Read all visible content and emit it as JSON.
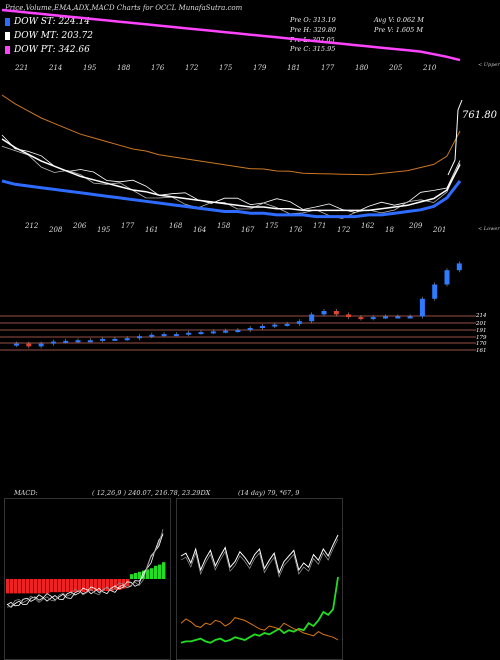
{
  "header": {
    "title": "Price,Volume,EMA,ADX,MACD Charts for OCCL  MunafaSutra.com"
  },
  "legend": [
    {
      "label": "DOW ST: 224.14",
      "color": "#2e6bff"
    },
    {
      "label": "DOW MT: 203.72",
      "color": "#ffffff"
    },
    {
      "label": "DOW PT: 342.66",
      "color": "#ff44ff"
    }
  ],
  "info": {
    "open": "Pre   O: 313.19",
    "high": "Pre   H: 329.80",
    "low": "Pre   L: 307.05",
    "close": "Pre   C: 315.95",
    "avg_vol": "Avg V: 0.062  M",
    "pre_vol": "Pre   V: 1.605  M"
  },
  "tags": {
    "upper": "< Upper",
    "lower": "< Lower"
  },
  "price_label": "761.80",
  "levels": [
    "214",
    "201",
    "191",
    "179",
    "170",
    "161"
  ],
  "macd": {
    "label": "MACD:",
    "values": "( 12,26,9 ) 240.07,  216.78,  23.29DX",
    "adx": "(14  day) 79,  *67,  9"
  },
  "chart_data": [
    {
      "type": "line",
      "title": "Price,Volume,EMA,ADX,MACD Charts for OCCL",
      "series": [
        {
          "name": "DOW ST: 224.14",
          "color": "#2e6bff",
          "values": [
            178,
            176,
            175,
            174,
            173,
            172,
            171,
            170,
            169,
            168,
            167,
            166,
            165,
            164,
            163,
            162,
            161,
            160,
            160,
            159,
            159,
            158,
            158,
            158,
            157,
            157,
            157,
            157,
            158,
            158,
            159,
            160,
            161,
            163,
            168,
            178
          ]
        },
        {
          "name": "DOW MT: 203.72",
          "color": "#ffffff",
          "values": [
            205,
            200,
            196,
            192,
            189,
            186,
            183,
            181,
            179,
            177,
            175,
            174,
            172,
            171,
            170,
            169,
            168,
            167,
            166,
            165,
            165,
            164,
            164,
            163,
            163,
            163,
            163,
            163,
            163,
            164,
            165,
            166,
            168,
            170,
            175,
            190
          ]
        },
        {
          "name": "DOW PT: 342.66",
          "color": "#ff44ff",
          "values": [
            420,
            418,
            416,
            414,
            412,
            410,
            408,
            406,
            404,
            402,
            400,
            398,
            396,
            394,
            392,
            390,
            388,
            386,
            384,
            382,
            380,
            378,
            376,
            374,
            372,
            370,
            368,
            366,
            364,
            362,
            360,
            358,
            356,
            352,
            348,
            343
          ]
        }
      ],
      "top_labels": [
        "221",
        "214",
        "195",
        "188",
        "176",
        "172",
        "175",
        "179",
        "181",
        "177",
        "180",
        "205",
        "210"
      ],
      "bottom_labels": [
        "212",
        "208",
        "206",
        "195",
        "177",
        "161",
        "168",
        "164",
        "158",
        "167",
        "175",
        "176",
        "171",
        "172",
        "162",
        "18",
        "209",
        "201"
      ],
      "candles_close": [
        167,
        163,
        167,
        170,
        171,
        172,
        172,
        174,
        174,
        175,
        178,
        180,
        181,
        181,
        183,
        184,
        185,
        186,
        187,
        190,
        193,
        195,
        196,
        200,
        210,
        215,
        210,
        206,
        204,
        206,
        207,
        207,
        207,
        233,
        254,
        275,
        285
      ]
    },
    {
      "type": "bar",
      "title": "MACD",
      "values": [
        -12,
        -12,
        -12,
        -12,
        -12,
        -12,
        -12,
        -12,
        -12,
        -12,
        -12,
        -11,
        -11,
        -11,
        -11,
        -11,
        -11,
        -11,
        -11,
        -11,
        -11,
        -10,
        -10,
        -10,
        -10,
        -10,
        -10,
        -9,
        -9,
        -8,
        -6,
        4,
        5,
        6,
        7,
        8,
        9,
        11,
        12,
        14
      ]
    },
    {
      "type": "line",
      "title": "ADX",
      "series": [
        {
          "name": "DI+",
          "color": "#22dd22",
          "values": [
            8,
            9,
            9,
            10,
            11,
            9,
            8,
            10,
            11,
            9,
            10,
            12,
            11,
            10,
            12,
            14,
            13,
            15,
            14,
            16,
            18,
            15,
            17,
            16,
            18,
            17,
            22,
            20,
            24,
            30,
            28,
            32,
            55
          ]
        },
        {
          "name": "DI-",
          "color": "#dd7711",
          "values": [
            22,
            25,
            23,
            20,
            19,
            22,
            21,
            24,
            23,
            20,
            22,
            26,
            25,
            24,
            22,
            20,
            18,
            17,
            20,
            19,
            18,
            22,
            20,
            18,
            17,
            15,
            14,
            13,
            16,
            14,
            13,
            12,
            10
          ]
        },
        {
          "name": "ADX",
          "color": "#ffffff",
          "values": [
            70,
            72,
            65,
            75,
            60,
            68,
            74,
            63,
            70,
            76,
            62,
            66,
            73,
            69,
            64,
            71,
            75,
            61,
            67,
            72,
            58,
            66,
            70,
            74,
            60,
            65,
            62,
            71,
            67,
            75,
            70,
            78,
            85
          ]
        }
      ]
    }
  ]
}
